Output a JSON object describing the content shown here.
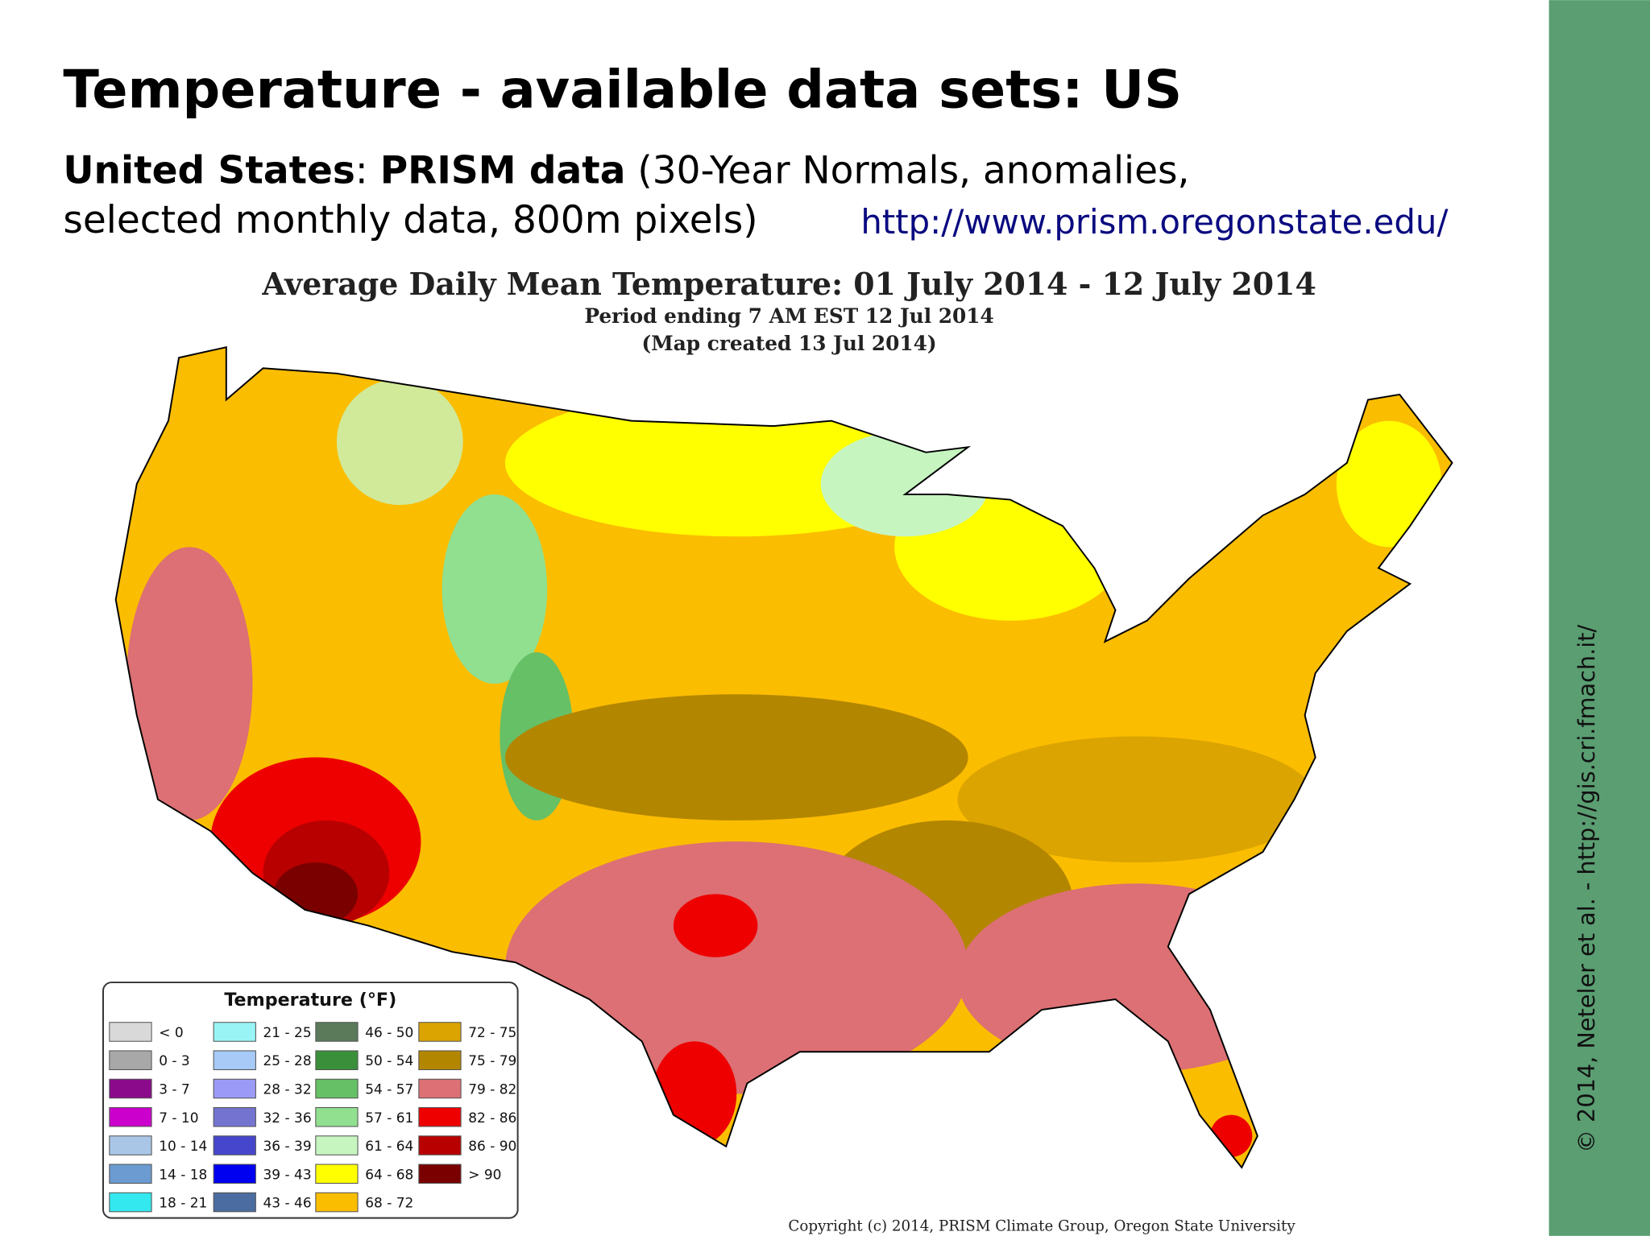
{
  "header": {
    "title": "Temperature - available data sets: US",
    "subtitle": {
      "part1": "United States",
      "part2": ": ",
      "part3": "PRISM data",
      "part4": " (30-Year Normals, anomalies,",
      "line2": "selected monthly data, 800m pixels)"
    },
    "url": "http://www.prism.oregonstate.edu/"
  },
  "map": {
    "title": "Average Daily Mean Temperature: 01 July 2014 - 12 July 2014",
    "period": "Period ending 7 AM EST 12 Jul 2014",
    "created": "(Map created 13 Jul 2014)",
    "legend": {
      "title": "Temperature (°F)",
      "items": [
        {
          "label": "< 0",
          "color": "#d9d9d9"
        },
        {
          "label": "0 - 3",
          "color": "#a8a8a8"
        },
        {
          "label": "3 - 7",
          "color": "#8b0a8b"
        },
        {
          "label": "7 - 10",
          "color": "#cc00cc"
        },
        {
          "label": "10 - 14",
          "color": "#a9c6e6"
        },
        {
          "label": "14 - 18",
          "color": "#6b9bd1"
        },
        {
          "label": "18 - 21",
          "color": "#33e8ee"
        },
        {
          "label": "21 - 25",
          "color": "#99f5f5"
        },
        {
          "label": "25 - 28",
          "color": "#a7caf7"
        },
        {
          "label": "28 - 32",
          "color": "#9b9bf7"
        },
        {
          "label": "32 - 36",
          "color": "#7474d0"
        },
        {
          "label": "36 - 39",
          "color": "#4646cc"
        },
        {
          "label": "39 - 43",
          "color": "#0000f0"
        },
        {
          "label": "43 - 46",
          "color": "#4a6ca0"
        },
        {
          "label": "46 - 50",
          "color": "#5a7a5a"
        },
        {
          "label": "50 - 54",
          "color": "#3a8f3a"
        },
        {
          "label": "54 - 57",
          "color": "#66c066"
        },
        {
          "label": "57 - 61",
          "color": "#90e090"
        },
        {
          "label": "61 - 64",
          "color": "#c6f5c0"
        },
        {
          "label": "64 - 68",
          "color": "#ffff00"
        },
        {
          "label": "68 - 72",
          "color": "#fbbd00"
        },
        {
          "label": "72 - 75",
          "color": "#dba400"
        },
        {
          "label": "75 - 79",
          "color": "#b38600"
        },
        {
          "label": "79 - 82",
          "color": "#dc7074"
        },
        {
          "label": "82 - 86",
          "color": "#ee0000"
        },
        {
          "label": "86 - 90",
          "color": "#b80000"
        },
        {
          "label": "> 90",
          "color": "#7a0000"
        }
      ]
    },
    "copyright": "Copyright (c) 2014, PRISM Climate Group, Oregon State University"
  },
  "sidebar": "© 2014, Neteler et al. - http://gis.cri.fmach.it/"
}
